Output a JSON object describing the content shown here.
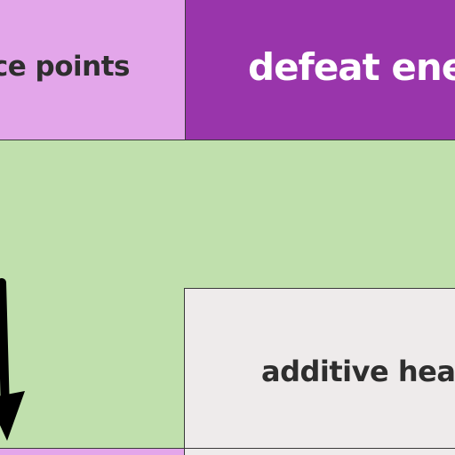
{
  "nodes": {
    "points": {
      "label": "ce points"
    },
    "defeat": {
      "label": "defeat ene"
    },
    "additive": {
      "label": "additive hea"
    }
  },
  "colors": {
    "background": "#c0e0ad",
    "points_fill": "#e3a6ea",
    "defeat_fill": "#9935ab",
    "additive_fill": "#eeebeb",
    "arrow": "#000000"
  }
}
